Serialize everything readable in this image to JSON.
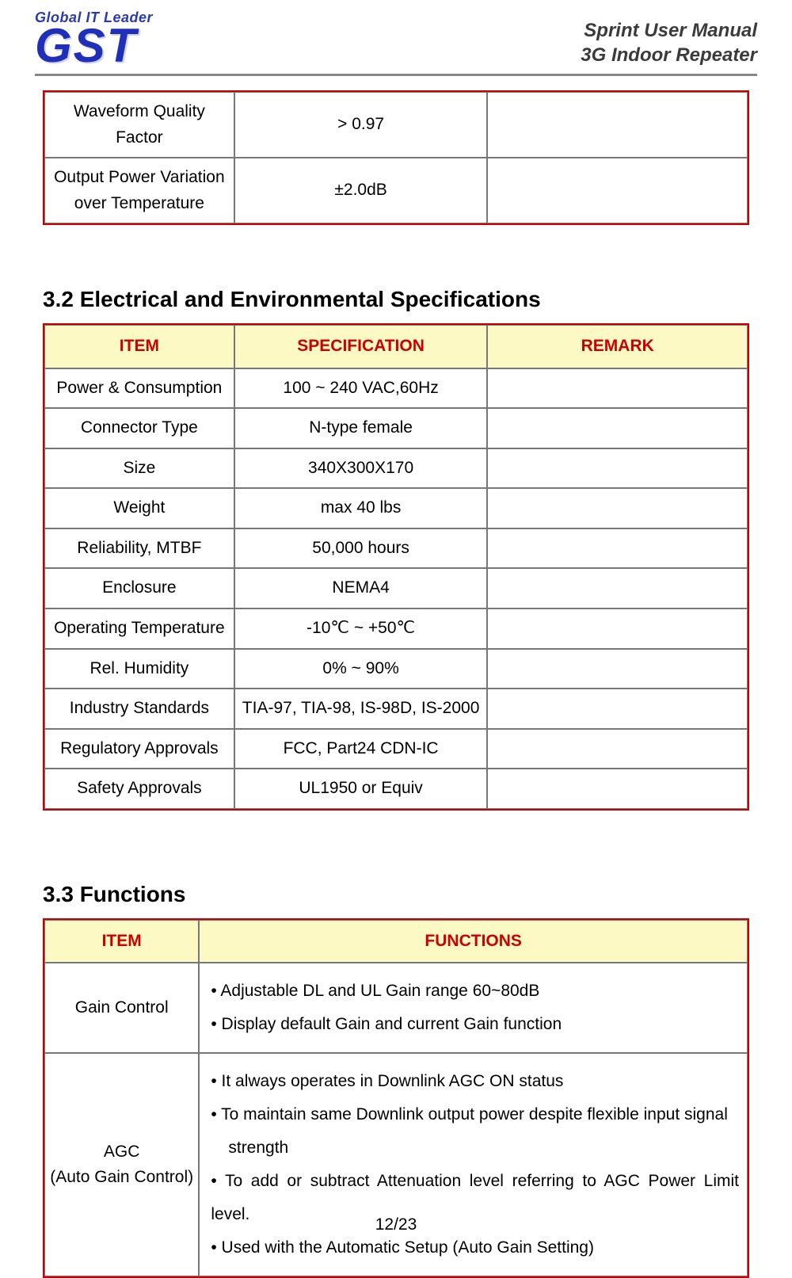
{
  "header": {
    "logo_tagline": "Global IT Leader",
    "logo_text": "GST",
    "title_line1": "Sprint User Manual",
    "title_line2": "3G Indoor Repeater"
  },
  "fragment_table": {
    "col_widths_pct": [
      27,
      36,
      37
    ],
    "rows": [
      {
        "item": "Waveform Quality Factor",
        "spec": "> 0.97",
        "remark": ""
      },
      {
        "item": "Output Power Variation over Temperature",
        "spec": "±2.0dB",
        "remark": ""
      }
    ]
  },
  "section32": {
    "heading": "3.2 Electrical and Environmental Specifications",
    "headers": [
      "ITEM",
      "SPECIFICATION",
      "REMARK"
    ],
    "col_widths_pct": [
      27,
      36,
      37
    ],
    "rows": [
      {
        "item": "Power & Consumption",
        "spec": "100 ~ 240 VAC,60Hz",
        "remark": ""
      },
      {
        "item": "Connector Type",
        "spec": "N-type female",
        "remark": ""
      },
      {
        "item": "Size",
        "spec": "340X300X170",
        "remark": ""
      },
      {
        "item": "Weight",
        "spec": "max 40 lbs",
        "remark": ""
      },
      {
        "item": "Reliability, MTBF",
        "spec": "50,000 hours",
        "remark": ""
      },
      {
        "item": "Enclosure",
        "spec": "NEMA4",
        "remark": ""
      },
      {
        "item": "Operating Temperature",
        "spec": "-10℃ ~ +50℃",
        "remark": ""
      },
      {
        "item": "Rel. Humidity",
        "spec": "0% ~ 90%",
        "remark": ""
      },
      {
        "item": "Industry Standards",
        "spec": "TIA-97, TIA-98, IS-98D, IS-2000",
        "remark": ""
      },
      {
        "item": "Regulatory Approvals",
        "spec": "FCC, Part24 CDN-IC",
        "remark": ""
      },
      {
        "item": "Safety Approvals",
        "spec": "UL1950 or Equiv",
        "remark": ""
      }
    ]
  },
  "section33": {
    "heading": "3.3 Functions",
    "headers": [
      "ITEM",
      "FUNCTIONS"
    ],
    "col_widths_pct": [
      22,
      78
    ],
    "rows": [
      {
        "item": "Gain Control",
        "lines": [
          {
            "text": "• Adjustable DL and UL Gain range 60~80dB",
            "indent": false
          },
          {
            "text": "• Display default Gain and current Gain function",
            "indent": false
          }
        ]
      },
      {
        "item": "AGC\n(Auto Gain Control)",
        "lines": [
          {
            "text": "• It always operates in Downlink AGC ON status",
            "indent": false
          },
          {
            "text": "• To maintain same Downlink output power despite flexible input signal",
            "indent": false
          },
          {
            "text": "strength",
            "indent": true
          },
          {
            "text": "• To add or subtract Attenuation level referring to AGC Power Limit level.",
            "indent": false
          },
          {
            "text": "• Used with the Automatic Setup (Auto Gain Setting)",
            "indent": false
          }
        ]
      }
    ]
  },
  "footer": {
    "page": "12/23"
  },
  "style": {
    "accent_red": "#cc0000",
    "header_bg": "#fdf9c4",
    "border_gray": "#777777",
    "logo_blue": "#2a3bb0"
  }
}
